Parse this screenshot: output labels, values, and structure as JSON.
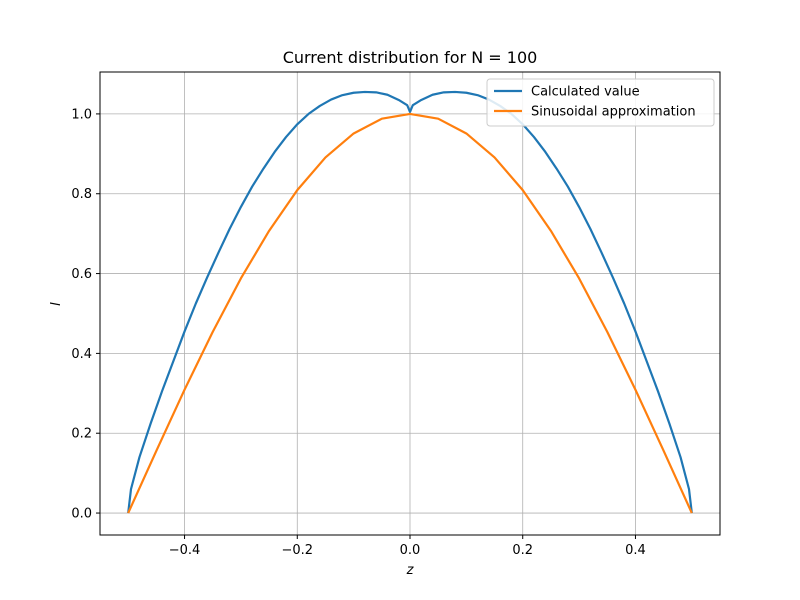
{
  "chart_data": {
    "type": "line",
    "title": "Current distribution for N = 100",
    "xlabel": "z",
    "ylabel": "I",
    "xlim": [
      -0.55,
      0.55
    ],
    "ylim": [
      -0.055,
      1.105
    ],
    "xticks": [
      -0.4,
      -0.2,
      0.0,
      0.2,
      0.4
    ],
    "xtick_labels": [
      "−0.4",
      "−0.2",
      "0.0",
      "0.2",
      "0.4"
    ],
    "yticks": [
      0.0,
      0.2,
      0.4,
      0.6,
      0.8,
      1.0
    ],
    "ytick_labels": [
      "0.0",
      "0.2",
      "0.4",
      "0.6",
      "0.8",
      "1.0"
    ],
    "grid": true,
    "legend_position": "top-right",
    "series": [
      {
        "name": "Calculated value",
        "color": "#1f77b4",
        "x": [
          -0.5,
          -0.495,
          -0.48,
          -0.46,
          -0.44,
          -0.42,
          -0.4,
          -0.38,
          -0.36,
          -0.34,
          -0.32,
          -0.3,
          -0.28,
          -0.26,
          -0.24,
          -0.22,
          -0.2,
          -0.18,
          -0.16,
          -0.14,
          -0.12,
          -0.1,
          -0.08,
          -0.06,
          -0.04,
          -0.02,
          -0.005,
          0.0,
          0.005,
          0.02,
          0.04,
          0.06,
          0.08,
          0.1,
          0.12,
          0.14,
          0.16,
          0.18,
          0.2,
          0.22,
          0.24,
          0.26,
          0.28,
          0.3,
          0.32,
          0.34,
          0.36,
          0.38,
          0.4,
          0.42,
          0.44,
          0.46,
          0.48,
          0.495,
          0.5
        ],
        "y": [
          0.0,
          0.06,
          0.14,
          0.225,
          0.305,
          0.38,
          0.455,
          0.525,
          0.59,
          0.652,
          0.712,
          0.767,
          0.818,
          0.863,
          0.905,
          0.942,
          0.974,
          1.0,
          1.02,
          1.036,
          1.047,
          1.053,
          1.055,
          1.054,
          1.048,
          1.035,
          1.022,
          1.005,
          1.022,
          1.035,
          1.048,
          1.054,
          1.055,
          1.053,
          1.047,
          1.036,
          1.02,
          1.0,
          0.974,
          0.942,
          0.905,
          0.863,
          0.818,
          0.767,
          0.712,
          0.652,
          0.59,
          0.525,
          0.455,
          0.38,
          0.305,
          0.225,
          0.14,
          0.06,
          0.0
        ]
      },
      {
        "name": "Sinusoidal approximation",
        "color": "#ff7f0e",
        "x": [
          -0.5,
          -0.45,
          -0.4,
          -0.35,
          -0.3,
          -0.25,
          -0.2,
          -0.15,
          -0.1,
          -0.05,
          0.0,
          0.05,
          0.1,
          0.15,
          0.2,
          0.25,
          0.3,
          0.35,
          0.4,
          0.45,
          0.5
        ],
        "y": [
          0.0,
          0.156,
          0.309,
          0.454,
          0.588,
          0.707,
          0.809,
          0.891,
          0.951,
          0.988,
          1.0,
          0.988,
          0.951,
          0.891,
          0.809,
          0.707,
          0.588,
          0.454,
          0.309,
          0.156,
          0.0
        ]
      }
    ]
  }
}
